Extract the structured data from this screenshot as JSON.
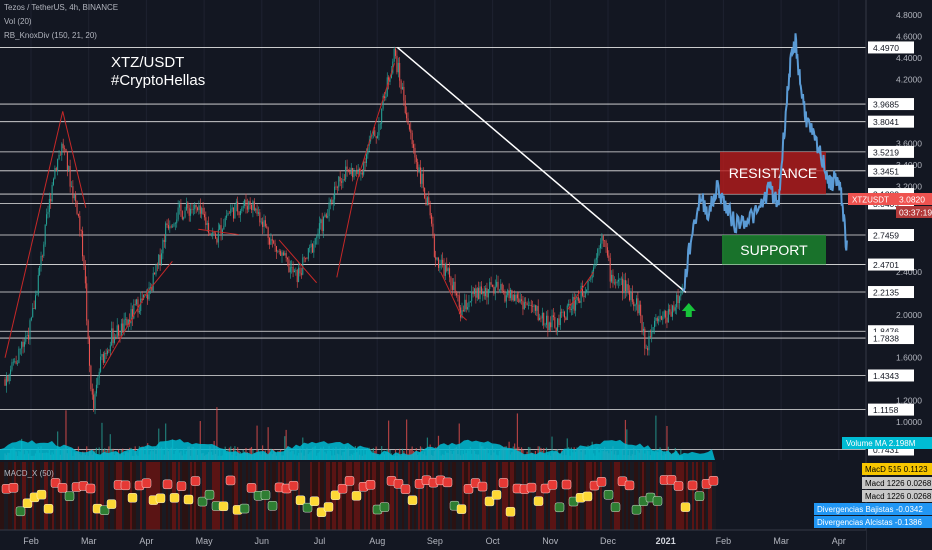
{
  "header": {
    "symbol_line": "Tezos / TetherUS, 4h, BINANCE",
    "vol_line": "Vol (20)",
    "indicator_line": "RB_KnoxDiv (150, 21, 20)",
    "macd_line": "MACD_X (50)"
  },
  "annotations": {
    "title_line1": "XTZ/USDT",
    "title_line2": "#CryptoHellas"
  },
  "chart_data": {
    "type": "candlestick",
    "pair": "XTZ/USDT",
    "y_axis_ticks": [
      4.8,
      4.6,
      4.4,
      4.2,
      3.6,
      3.4,
      3.2,
      2.4,
      2.0,
      1.6,
      1.2,
      1.0
    ],
    "y_axis_tick_labels": [
      "4.8000",
      "4.6000",
      "4.4000",
      "4.2000",
      "3.6000",
      "3.4000",
      "3.2000",
      "2.4000",
      "2.0000",
      "1.6000",
      "1.2000",
      "1.0000"
    ],
    "horizontal_levels": [
      {
        "value": 4.497,
        "label": "4.4970"
      },
      {
        "value": 3.9685,
        "label": "3.9685"
      },
      {
        "value": 3.8041,
        "label": "3.8041"
      },
      {
        "value": 3.5219,
        "label": "3.5219"
      },
      {
        "value": 3.3451,
        "label": "3.3451"
      },
      {
        "value": 3.1283,
        "label": "3.1283"
      },
      {
        "value": 3.0409,
        "label": "3.0409"
      },
      {
        "value": 2.7459,
        "label": "2.7459"
      },
      {
        "value": 2.4701,
        "label": "2.4701"
      },
      {
        "value": 2.2135,
        "label": "2.2135"
      },
      {
        "value": 1.8476,
        "label": "1.8476"
      },
      {
        "value": 1.7838,
        "label": "1.7838"
      },
      {
        "value": 1.4343,
        "label": "1.4343"
      },
      {
        "value": 1.1158,
        "label": "1.1158"
      },
      {
        "value": 0.7431,
        "label": "0.7431"
      }
    ],
    "price_badge": {
      "label": "XTZUSDT",
      "value": "3.0820",
      "countdown": "03:37:19",
      "price": 3.082
    },
    "volume_badge": {
      "label": "Volume MA",
      "value": "2.198M"
    },
    "macd_badges": [
      {
        "label": "MacD 515",
        "value": "0.1123",
        "color": "#f7c600",
        "text_color": "#000000"
      },
      {
        "label": "Macd 1226",
        "value": "0.0268",
        "color": "#c8c8c8",
        "text_color": "#000000"
      },
      {
        "label": "Macd 1226",
        "value": "0.0268",
        "color": "#c8c8c8",
        "text_color": "#000000"
      },
      {
        "label": "Divergencias Bajistas",
        "value": "-0.0342",
        "color": "#2196f3",
        "text_color": "#ffffff"
      },
      {
        "label": "Divergencias Alcistas",
        "value": "-0.1386",
        "color": "#2196f3",
        "text_color": "#ffffff"
      }
    ],
    "x_axis_labels": [
      "Feb",
      "Mar",
      "Apr",
      "May",
      "Jun",
      "Jul",
      "Aug",
      "Sep",
      "Oct",
      "Nov",
      "Dec",
      "2021",
      "Feb",
      "Mar",
      "Apr"
    ],
    "x_axis_label_index": [
      0,
      1,
      2,
      3,
      4,
      5,
      6,
      7,
      8,
      9,
      10,
      11,
      12,
      13,
      14
    ],
    "zones": [
      {
        "label": "RESISTANCE",
        "low": 3.128,
        "high": 3.522,
        "color": "#b71c1c"
      },
      {
        "label": "SUPPORT",
        "low": 2.47,
        "high": 2.746,
        "color": "#1b8a2e"
      }
    ],
    "trendline": {
      "start": {
        "month_index": 6.35,
        "value": 4.497
      },
      "end": {
        "month_index": 11.35,
        "value": 2.21
      }
    },
    "price_path": [
      {
        "m": -0.45,
        "v": 1.4
      },
      {
        "m": -0.25,
        "v": 1.6
      },
      {
        "m": 0.0,
        "v": 1.9
      },
      {
        "m": 0.2,
        "v": 2.6
      },
      {
        "m": 0.4,
        "v": 3.35
      },
      {
        "m": 0.55,
        "v": 3.6
      },
      {
        "m": 0.7,
        "v": 3.2
      },
      {
        "m": 0.8,
        "v": 3.0
      },
      {
        "m": 0.92,
        "v": 2.5
      },
      {
        "m": 1.0,
        "v": 1.6
      },
      {
        "m": 1.08,
        "v": 1.1
      },
      {
        "m": 1.2,
        "v": 1.55
      },
      {
        "m": 1.4,
        "v": 1.8
      },
      {
        "m": 1.65,
        "v": 1.9
      },
      {
        "m": 1.85,
        "v": 2.1
      },
      {
        "m": 2.0,
        "v": 2.15
      },
      {
        "m": 2.2,
        "v": 2.45
      },
      {
        "m": 2.35,
        "v": 2.85
      },
      {
        "m": 2.55,
        "v": 2.95
      },
      {
        "m": 2.8,
        "v": 3.0
      },
      {
        "m": 3.0,
        "v": 2.9
      },
      {
        "m": 3.2,
        "v": 2.7
      },
      {
        "m": 3.4,
        "v": 2.95
      },
      {
        "m": 3.6,
        "v": 3.0
      },
      {
        "m": 3.8,
        "v": 3.05
      },
      {
        "m": 4.0,
        "v": 2.9
      },
      {
        "m": 4.2,
        "v": 2.65
      },
      {
        "m": 4.4,
        "v": 2.5
      },
      {
        "m": 4.6,
        "v": 2.35
      },
      {
        "m": 4.8,
        "v": 2.55
      },
      {
        "m": 5.0,
        "v": 2.8
      },
      {
        "m": 5.15,
        "v": 2.95
      },
      {
        "m": 5.3,
        "v": 3.25
      },
      {
        "m": 5.5,
        "v": 3.35
      },
      {
        "m": 5.7,
        "v": 3.3
      },
      {
        "m": 5.85,
        "v": 3.6
      },
      {
        "m": 6.0,
        "v": 3.7
      },
      {
        "m": 6.15,
        "v": 4.1
      },
      {
        "m": 6.3,
        "v": 4.45
      },
      {
        "m": 6.45,
        "v": 4.05
      },
      {
        "m": 6.6,
        "v": 3.6
      },
      {
        "m": 6.75,
        "v": 3.3
      },
      {
        "m": 6.9,
        "v": 2.95
      },
      {
        "m": 7.0,
        "v": 2.55
      },
      {
        "m": 7.15,
        "v": 2.45
      },
      {
        "m": 7.3,
        "v": 2.3
      },
      {
        "m": 7.45,
        "v": 2.0
      },
      {
        "m": 7.6,
        "v": 2.15
      },
      {
        "m": 7.8,
        "v": 2.2
      },
      {
        "m": 8.0,
        "v": 2.25
      },
      {
        "m": 8.2,
        "v": 2.2
      },
      {
        "m": 8.45,
        "v": 2.15
      },
      {
        "m": 8.7,
        "v": 2.05
      },
      {
        "m": 8.9,
        "v": 1.95
      },
      {
        "m": 9.1,
        "v": 1.9
      },
      {
        "m": 9.3,
        "v": 2.05
      },
      {
        "m": 9.55,
        "v": 2.2
      },
      {
        "m": 9.75,
        "v": 2.45
      },
      {
        "m": 9.9,
        "v": 2.8
      },
      {
        "m": 10.05,
        "v": 2.35
      },
      {
        "m": 10.2,
        "v": 2.3
      },
      {
        "m": 10.4,
        "v": 2.2
      },
      {
        "m": 10.55,
        "v": 2.05
      },
      {
        "m": 10.65,
        "v": 1.65
      },
      {
        "m": 10.8,
        "v": 2.0
      },
      {
        "m": 11.0,
        "v": 1.98
      },
      {
        "m": 11.15,
        "v": 2.1
      },
      {
        "m": 11.3,
        "v": 2.2
      }
    ],
    "blue_path": [
      {
        "m": 11.3,
        "v": 2.2
      },
      {
        "m": 11.45,
        "v": 2.75
      },
      {
        "m": 11.6,
        "v": 3.1
      },
      {
        "m": 11.75,
        "v": 2.95
      },
      {
        "m": 11.9,
        "v": 3.2
      },
      {
        "m": 12.05,
        "v": 3.0
      },
      {
        "m": 12.2,
        "v": 2.85
      },
      {
        "m": 12.4,
        "v": 2.9
      },
      {
        "m": 12.6,
        "v": 2.95
      },
      {
        "m": 12.8,
        "v": 3.2
      },
      {
        "m": 12.95,
        "v": 3.0
      },
      {
        "m": 13.05,
        "v": 3.7
      },
      {
        "m": 13.15,
        "v": 4.3
      },
      {
        "m": 13.25,
        "v": 4.55
      },
      {
        "m": 13.35,
        "v": 4.1
      },
      {
        "m": 13.45,
        "v": 3.8
      },
      {
        "m": 13.6,
        "v": 3.6
      },
      {
        "m": 13.75,
        "v": 3.4
      },
      {
        "m": 13.85,
        "v": 3.2
      },
      {
        "m": 13.95,
        "v": 3.3
      },
      {
        "m": 14.05,
        "v": 3.1
      },
      {
        "m": 14.15,
        "v": 2.55
      }
    ],
    "red_pattern_lines": [
      [
        {
          "m": -0.45,
          "v": 1.6
        },
        {
          "m": 0.55,
          "v": 3.9
        }
      ],
      [
        {
          "m": 0.55,
          "v": 3.9
        },
        {
          "m": 0.95,
          "v": 3.0
        }
      ],
      [
        {
          "m": 1.25,
          "v": 1.5
        },
        {
          "m": 2.0,
          "v": 2.2
        }
      ],
      [
        {
          "m": 2.0,
          "v": 2.2
        },
        {
          "m": 2.45,
          "v": 2.5
        }
      ],
      [
        {
          "m": 2.9,
          "v": 2.8
        },
        {
          "m": 3.6,
          "v": 2.75
        }
      ],
      [
        {
          "m": 4.3,
          "v": 2.7
        },
        {
          "m": 4.95,
          "v": 2.3
        }
      ],
      [
        {
          "m": 5.3,
          "v": 2.35
        },
        {
          "m": 5.65,
          "v": 3.25
        }
      ],
      [
        {
          "m": 5.65,
          "v": 3.25
        },
        {
          "m": 6.3,
          "v": 4.35
        }
      ],
      [
        {
          "m": 7.1,
          "v": 2.4
        },
        {
          "m": 7.45,
          "v": 2.0
        }
      ],
      [
        {
          "m": 7.45,
          "v": 2.0
        },
        {
          "m": 7.55,
          "v": 1.95
        }
      ],
      [
        {
          "m": 9.3,
          "v": 2.05
        },
        {
          "m": 9.75,
          "v": 2.4
        }
      ]
    ],
    "green_arrow": {
      "m": 11.4,
      "v": 1.98
    }
  }
}
